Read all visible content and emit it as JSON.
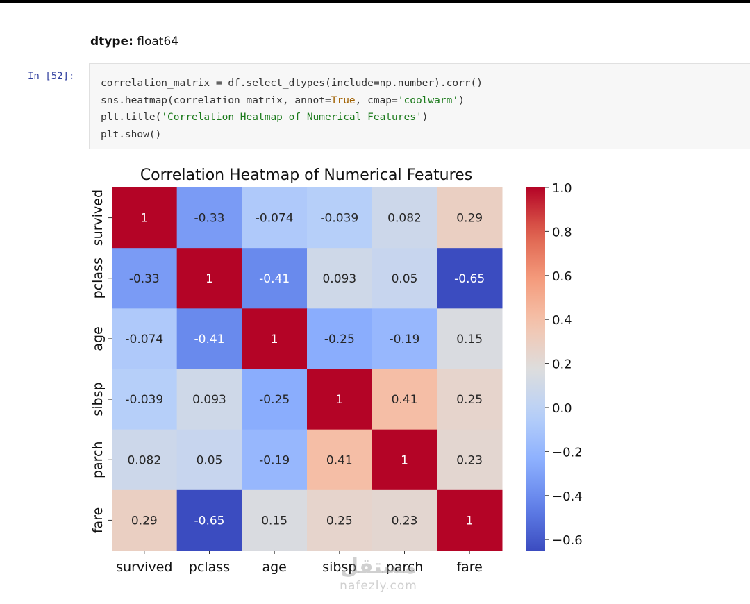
{
  "output": {
    "dtype_label": "dtype:",
    "dtype_value": "float64"
  },
  "cell": {
    "prompt": "In [52]:",
    "code_lines": [
      [
        {
          "t": "correlation_matrix = df.select_dtypes(include=np.number).corr()",
          "c": ""
        }
      ],
      [
        {
          "t": "sns.heatmap(correlation_matrix, annot=",
          "c": ""
        },
        {
          "t": "True",
          "c": "kw"
        },
        {
          "t": ", cmap=",
          "c": ""
        },
        {
          "t": "'coolwarm'",
          "c": "str"
        },
        {
          "t": ")",
          "c": ""
        }
      ],
      [
        {
          "t": "plt.title(",
          "c": ""
        },
        {
          "t": "'Correlation Heatmap of Numerical Features'",
          "c": "str"
        },
        {
          "t": ")",
          "c": ""
        }
      ],
      [
        {
          "t": "plt.show()",
          "c": ""
        }
      ]
    ]
  },
  "chart_data": {
    "type": "heatmap",
    "title": "Correlation Heatmap of Numerical Features",
    "x_labels": [
      "survived",
      "pclass",
      "age",
      "sibsp",
      "parch",
      "fare"
    ],
    "y_labels": [
      "survived",
      "pclass",
      "age",
      "sibsp",
      "parch",
      "fare"
    ],
    "matrix": [
      [
        1,
        -0.33,
        -0.074,
        -0.039,
        0.082,
        0.29
      ],
      [
        -0.33,
        1,
        -0.41,
        0.093,
        0.05,
        -0.65
      ],
      [
        -0.074,
        -0.41,
        1,
        -0.25,
        -0.19,
        0.15
      ],
      [
        -0.039,
        0.093,
        -0.25,
        1,
        0.41,
        0.25
      ],
      [
        0.082,
        0.05,
        -0.19,
        0.41,
        1,
        0.23
      ],
      [
        0.29,
        -0.65,
        0.15,
        0.25,
        0.23,
        1
      ]
    ],
    "annotations": [
      [
        "1",
        "-0.33",
        "-0.074",
        "-0.039",
        "0.082",
        "0.29"
      ],
      [
        "-0.33",
        "1",
        "-0.41",
        "0.093",
        "0.05",
        "-0.65"
      ],
      [
        "-0.074",
        "-0.41",
        "1",
        "-0.25",
        "-0.19",
        "0.15"
      ],
      [
        "-0.039",
        "0.093",
        "-0.25",
        "1",
        "0.41",
        "0.25"
      ],
      [
        "0.082",
        "0.05",
        "-0.19",
        "0.41",
        "1",
        "0.23"
      ],
      [
        "0.29",
        "-0.65",
        "0.15",
        "0.25",
        "0.23",
        "1"
      ]
    ],
    "colormap": "coolwarm",
    "color_range": [
      -0.65,
      1.0
    ],
    "colorbar_ticks": [
      1.0,
      0.8,
      0.6,
      0.4,
      0.2,
      0.0,
      -0.2,
      -0.4,
      -0.6
    ],
    "colorbar_tick_labels": [
      "1.0",
      "0.8",
      "0.6",
      "0.4",
      "0.2",
      "0.0",
      "−0.2",
      "−0.4",
      "−0.6"
    ],
    "colorbar_placement": "right"
  },
  "watermark": {
    "arabic": "مستقل",
    "latin": "nafezly.com"
  }
}
